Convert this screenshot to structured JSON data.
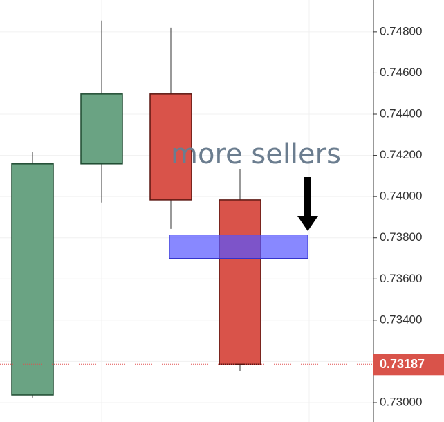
{
  "chart_data": {
    "type": "candlestick",
    "candles": [
      {
        "open": 0.73037,
        "high": 0.74216,
        "low": 0.73024,
        "close": 0.74159
      },
      {
        "open": 0.74159,
        "high": 0.74854,
        "low": 0.73971,
        "close": 0.74498
      },
      {
        "open": 0.74498,
        "high": 0.7482,
        "low": 0.73843,
        "close": 0.73984
      },
      {
        "open": 0.73984,
        "high": 0.74135,
        "low": 0.73151,
        "close": 0.73187
      }
    ],
    "up_color": "#6aa383",
    "down_color": "#d9534a",
    "ylim": [
      0.72906,
      0.74954
    ],
    "yticks": [
      {
        "value": 0.748,
        "label": "0.74800"
      },
      {
        "value": 0.746,
        "label": "0.74600"
      },
      {
        "value": 0.744,
        "label": "0.74400"
      },
      {
        "value": 0.742,
        "label": "0.74200"
      },
      {
        "value": 0.74,
        "label": "0.74000"
      },
      {
        "value": 0.738,
        "label": "0.73800"
      },
      {
        "value": 0.736,
        "label": "0.73600"
      },
      {
        "value": 0.734,
        "label": "0.73400"
      },
      {
        "value": 0.732,
        "label": "0.73200"
      },
      {
        "value": 0.73,
        "label": "0.73000"
      }
    ],
    "grid": true,
    "last_price": 0.73187,
    "zone": {
      "from": 0.737,
      "to": 0.73814,
      "color": "#5555ff"
    },
    "annotation": "more sellers"
  }
}
